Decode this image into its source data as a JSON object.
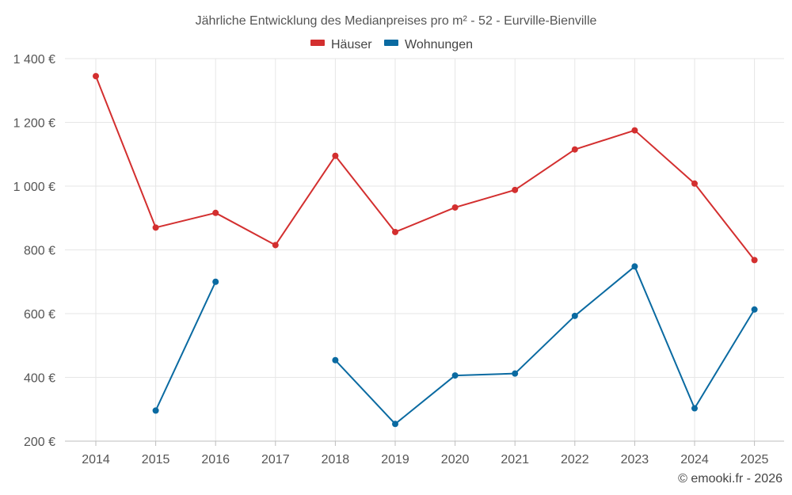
{
  "chart_data": {
    "type": "line",
    "title": "Jährliche Entwicklung des Medianpreises pro m² - 52 - Eurville-Bienville",
    "xlabel": "",
    "ylabel": "",
    "categories": [
      "2014",
      "2015",
      "2016",
      "2017",
      "2018",
      "2019",
      "2020",
      "2021",
      "2022",
      "2023",
      "2024",
      "2025"
    ],
    "ylim": [
      200,
      1400
    ],
    "yticks": [
      200,
      400,
      600,
      800,
      1000,
      1200,
      1400
    ],
    "ytick_labels": [
      "200 €",
      "400 €",
      "600 €",
      "800 €",
      "1 000 €",
      "1 200 €",
      "1 400 €"
    ],
    "grid": true,
    "legend_position": "top-center",
    "series": [
      {
        "name": "Häuser",
        "color": "#d32f2f",
        "values": [
          1345,
          870,
          916,
          815,
          1095,
          856,
          933,
          988,
          1115,
          1175,
          1008,
          768
        ]
      },
      {
        "name": "Wohnungen",
        "color": "#0a6aa1",
        "values": [
          null,
          296,
          700,
          null,
          454,
          254,
          406,
          412,
          593,
          748,
          303,
          613
        ]
      }
    ]
  },
  "credit": "© emooki.fr - 2026"
}
